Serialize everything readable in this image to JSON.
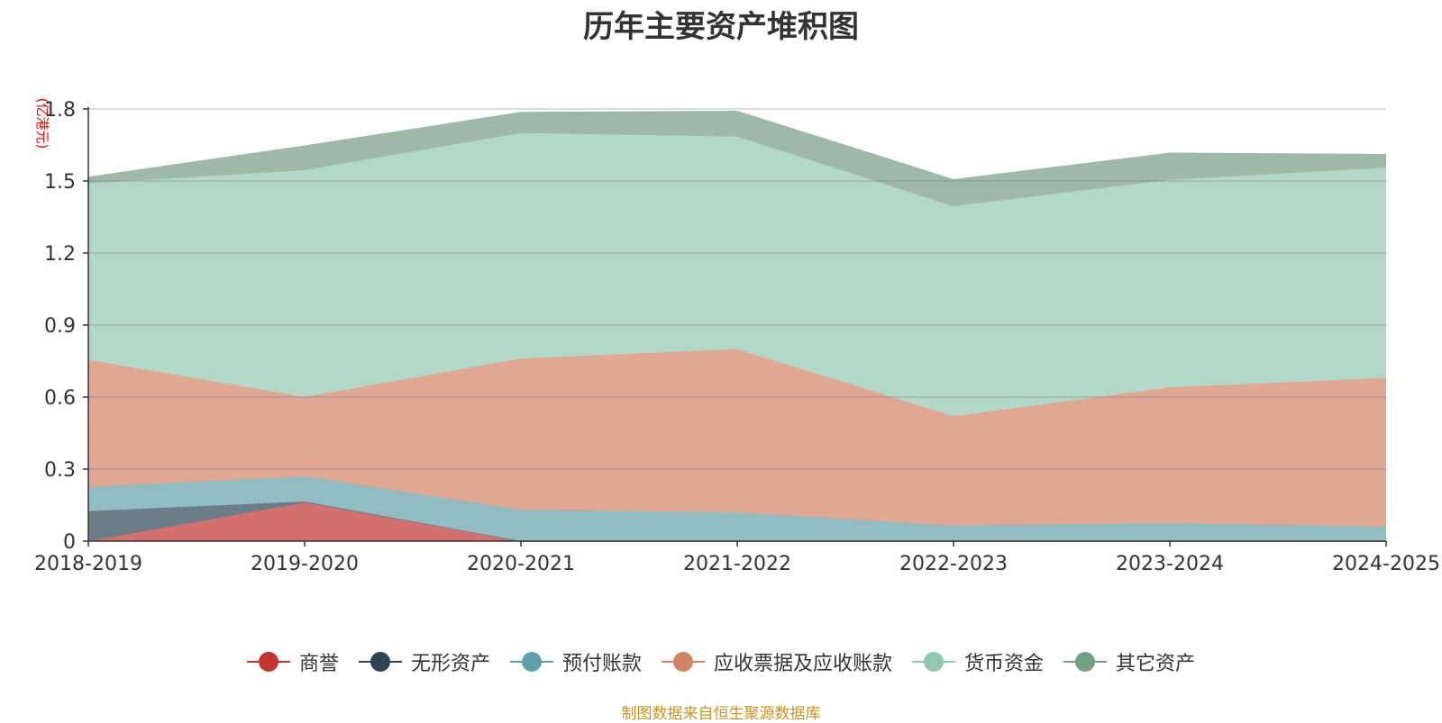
{
  "chart_data": {
    "type": "area",
    "stacked": true,
    "title": "历年主要资产堆积图",
    "ylabel": "(亿港元)",
    "xlabel": "",
    "categories": [
      "2018-2019",
      "2019-2020",
      "2020-2021",
      "2021-2022",
      "2022-2023",
      "2023-2024",
      "2024-2025"
    ],
    "ylim": [
      0,
      1.8
    ],
    "yticks": [
      0,
      0.3,
      0.6,
      0.9,
      1.2,
      1.5,
      1.8
    ],
    "ytick_labels": [
      "0",
      "0.3",
      "0.6",
      "0.9",
      "1.2",
      "1.5",
      "1.8"
    ],
    "grid": true,
    "legend_position": "bottom-center",
    "series": [
      {
        "name": "商誉",
        "color": "#c23531",
        "area_color": "#d4706d",
        "values": [
          0.0,
          0.16,
          0.0,
          0.0,
          0.0,
          0.0,
          0.0
        ]
      },
      {
        "name": "无形资产",
        "color": "#2f4554",
        "area_color": "#6c7d88",
        "values": [
          0.125,
          0.005,
          0.0,
          0.0,
          0.0,
          0.0,
          0.0
        ]
      },
      {
        "name": "预付账款",
        "color": "#61a0a8",
        "area_color": "#90bcc2",
        "values": [
          0.1,
          0.105,
          0.13,
          0.12,
          0.065,
          0.075,
          0.06
        ]
      },
      {
        "name": "应收票据及应收账款",
        "color": "#d48265",
        "area_color": "#e0a792",
        "values": [
          0.53,
          0.33,
          0.63,
          0.68,
          0.455,
          0.565,
          0.62
        ]
      },
      {
        "name": "货币资金",
        "color": "#91c7ae",
        "area_color": "#b2d9c7",
        "values": [
          0.735,
          0.945,
          0.94,
          0.885,
          0.875,
          0.865,
          0.875
        ]
      },
      {
        "name": "其它资产",
        "color": "#749f83",
        "area_color": "#9eb9a7",
        "values": [
          0.025,
          0.1,
          0.085,
          0.105,
          0.11,
          0.11,
          0.055
        ]
      }
    ]
  },
  "source_note": "制图数据来自恒生聚源数据库"
}
